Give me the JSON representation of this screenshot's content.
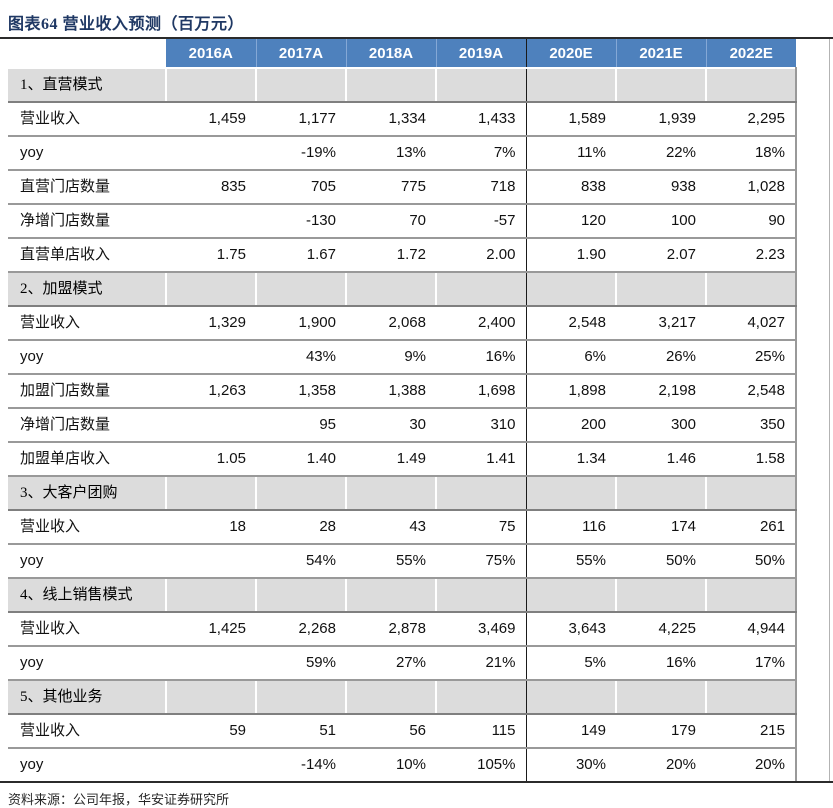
{
  "title": "图表64 营业收入预测（百万元）",
  "source": "资料来源：公司年报，华安证券研究所",
  "colors": {
    "header_bg": "#4E81BD",
    "header_divider_light": "#84A8D6",
    "section_bg": "#DCDCDC",
    "title_color": "#1F3864",
    "actual_estimate_divider": "#1A1A1A",
    "row_rule": "#999999"
  },
  "table": {
    "columns": [
      "2016A",
      "2017A",
      "2018A",
      "2019A",
      "2020E",
      "2021E",
      "2022E"
    ],
    "sections": [
      {
        "header": "1、直营模式",
        "rows": [
          {
            "label": "营业收入",
            "values": [
              "1,459",
              "1,177",
              "1,334",
              "1,433",
              "1,589",
              "1,939",
              "2,295"
            ]
          },
          {
            "label": "yoy",
            "values": [
              "",
              "-19%",
              "13%",
              "7%",
              "11%",
              "22%",
              "18%"
            ]
          },
          {
            "label": "直营门店数量",
            "values": [
              "835",
              "705",
              "775",
              "718",
              "838",
              "938",
              "1,028"
            ]
          },
          {
            "label": "净增门店数量",
            "values": [
              "",
              "-130",
              "70",
              "-57",
              "120",
              "100",
              "90"
            ]
          },
          {
            "label": "直营单店收入",
            "values": [
              "1.75",
              "1.67",
              "1.72",
              "2.00",
              "1.90",
              "2.07",
              "2.23"
            ]
          }
        ]
      },
      {
        "header": "2、加盟模式",
        "rows": [
          {
            "label": "营业收入",
            "values": [
              "1,329",
              "1,900",
              "2,068",
              "2,400",
              "2,548",
              "3,217",
              "4,027"
            ]
          },
          {
            "label": "yoy",
            "values": [
              "",
              "43%",
              "9%",
              "16%",
              "6%",
              "26%",
              "25%"
            ]
          },
          {
            "label": "加盟门店数量",
            "values": [
              "1,263",
              "1,358",
              "1,388",
              "1,698",
              "1,898",
              "2,198",
              "2,548"
            ]
          },
          {
            "label": "净增门店数量",
            "values": [
              "",
              "95",
              "30",
              "310",
              "200",
              "300",
              "350"
            ]
          },
          {
            "label": "加盟单店收入",
            "values": [
              "1.05",
              "1.40",
              "1.49",
              "1.41",
              "1.34",
              "1.46",
              "1.58"
            ]
          }
        ]
      },
      {
        "header": "3、大客户团购",
        "rows": [
          {
            "label": "营业收入",
            "values": [
              "18",
              "28",
              "43",
              "75",
              "116",
              "174",
              "261"
            ]
          },
          {
            "label": "yoy",
            "values": [
              "",
              "54%",
              "55%",
              "75%",
              "55%",
              "50%",
              "50%"
            ]
          }
        ]
      },
      {
        "header": "4、线上销售模式",
        "rows": [
          {
            "label": "营业收入",
            "values": [
              "1,425",
              "2,268",
              "2,878",
              "3,469",
              "3,643",
              "4,225",
              "4,944"
            ]
          },
          {
            "label": "yoy",
            "values": [
              "",
              "59%",
              "27%",
              "21%",
              "5%",
              "16%",
              "17%"
            ]
          }
        ]
      },
      {
        "header": "5、其他业务",
        "rows": [
          {
            "label": "营业收入",
            "values": [
              "59",
              "51",
              "56",
              "115",
              "149",
              "179",
              "215"
            ]
          },
          {
            "label": "yoy",
            "values": [
              "",
              "-14%",
              "10%",
              "105%",
              "30%",
              "20%",
              "20%"
            ]
          }
        ]
      }
    ]
  }
}
